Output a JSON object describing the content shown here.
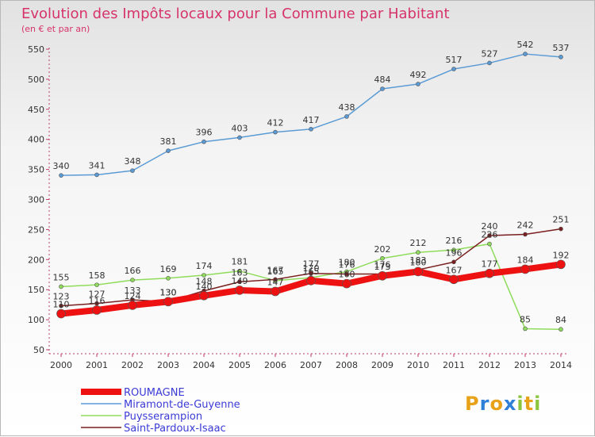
{
  "brand": {
    "letters": [
      {
        "ch": "P",
        "color": "#e8a21a"
      },
      {
        "ch": "r",
        "color": "#2f7fd6"
      },
      {
        "ch": "o",
        "color": "#e8a21a"
      },
      {
        "ch": "x",
        "color": "#2f7fd6"
      },
      {
        "ch": "i",
        "color": "#8cc63f"
      },
      {
        "ch": "t",
        "color": "#e8a21a"
      },
      {
        "ch": "i",
        "color": "#8cc63f"
      }
    ]
  },
  "chart_data": {
    "type": "line",
    "title": "Evolution des Impôts locaux pour la Commune par Habitant",
    "subtitle": "(en € et par an)",
    "x": [
      "2000",
      "2001",
      "2002",
      "2003",
      "2004",
      "2005",
      "2006",
      "2007",
      "2008",
      "2009",
      "2010",
      "2011",
      "2012",
      "2013",
      "2014"
    ],
    "ylim": [
      50,
      550
    ],
    "yticks": [
      50,
      100,
      150,
      200,
      250,
      300,
      350,
      400,
      450,
      500,
      550
    ],
    "grid": false,
    "legend_position": "bottom-left",
    "series": [
      {
        "name": "Miramont-de-Guyenne",
        "color": "#5b9bd5",
        "width": 1.5,
        "marker": 5,
        "values": [
          340,
          341,
          348,
          381,
          396,
          403,
          412,
          417,
          438,
          484,
          492,
          517,
          527,
          542,
          537
        ]
      },
      {
        "name": "Puysserampion",
        "color": "#8fdc5b",
        "width": 1.5,
        "marker": 5,
        "values": [
          155,
          158,
          166,
          169,
          174,
          181,
          165,
          170,
          180,
          202,
          212,
          216,
          226,
          85,
          84
        ]
      },
      {
        "name": "Saint-Pardoux-Isaac",
        "color": "#7a1f1f",
        "width": 1.5,
        "marker": 5,
        "values": [
          123,
          127,
          133,
          130,
          148,
          163,
          167,
          177,
          176,
          176,
          183,
          196,
          240,
          242,
          251
        ]
      },
      {
        "name": "ROUMAGNE",
        "color": "#ee1111",
        "width": 8,
        "marker": 11,
        "values": [
          110,
          116,
          124,
          130,
          140,
          149,
          147,
          165,
          160,
          173,
          180,
          167,
          177,
          184,
          192
        ]
      }
    ]
  }
}
